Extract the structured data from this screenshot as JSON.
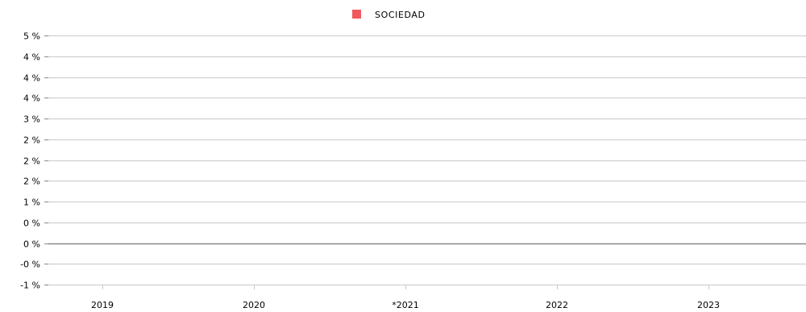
{
  "chart_data": {
    "type": "bar",
    "title": "",
    "xlabel": "",
    "ylabel": "",
    "legend_position": "top-center",
    "categories": [
      "2019",
      "2020",
      "*2021",
      "2022",
      "2023"
    ],
    "series": [
      {
        "name": "SOCIEDAD",
        "color": "#f05a5f",
        "values": [
          0,
          0,
          0,
          0,
          0
        ]
      }
    ],
    "y_ticks": [
      {
        "value": 5.0,
        "label": "5 %"
      },
      {
        "value": 4.5,
        "label": "4 %"
      },
      {
        "value": 4.0,
        "label": "4 %"
      },
      {
        "value": 3.5,
        "label": "4 %"
      },
      {
        "value": 3.0,
        "label": "3 %"
      },
      {
        "value": 2.5,
        "label": "2 %"
      },
      {
        "value": 2.0,
        "label": "2 %"
      },
      {
        "value": 1.5,
        "label": "2 %"
      },
      {
        "value": 1.0,
        "label": "1 %"
      },
      {
        "value": 0.5,
        "label": "0 %"
      },
      {
        "value": 0.0,
        "label": "0 %"
      },
      {
        "value": -0.5,
        "label": "-0 %"
      },
      {
        "value": -1.0,
        "label": "-1 %"
      }
    ],
    "ylim": [
      -1,
      5
    ],
    "grid": true,
    "gridline_color": "#c8c8c8",
    "zero_line_color": "#888888"
  }
}
